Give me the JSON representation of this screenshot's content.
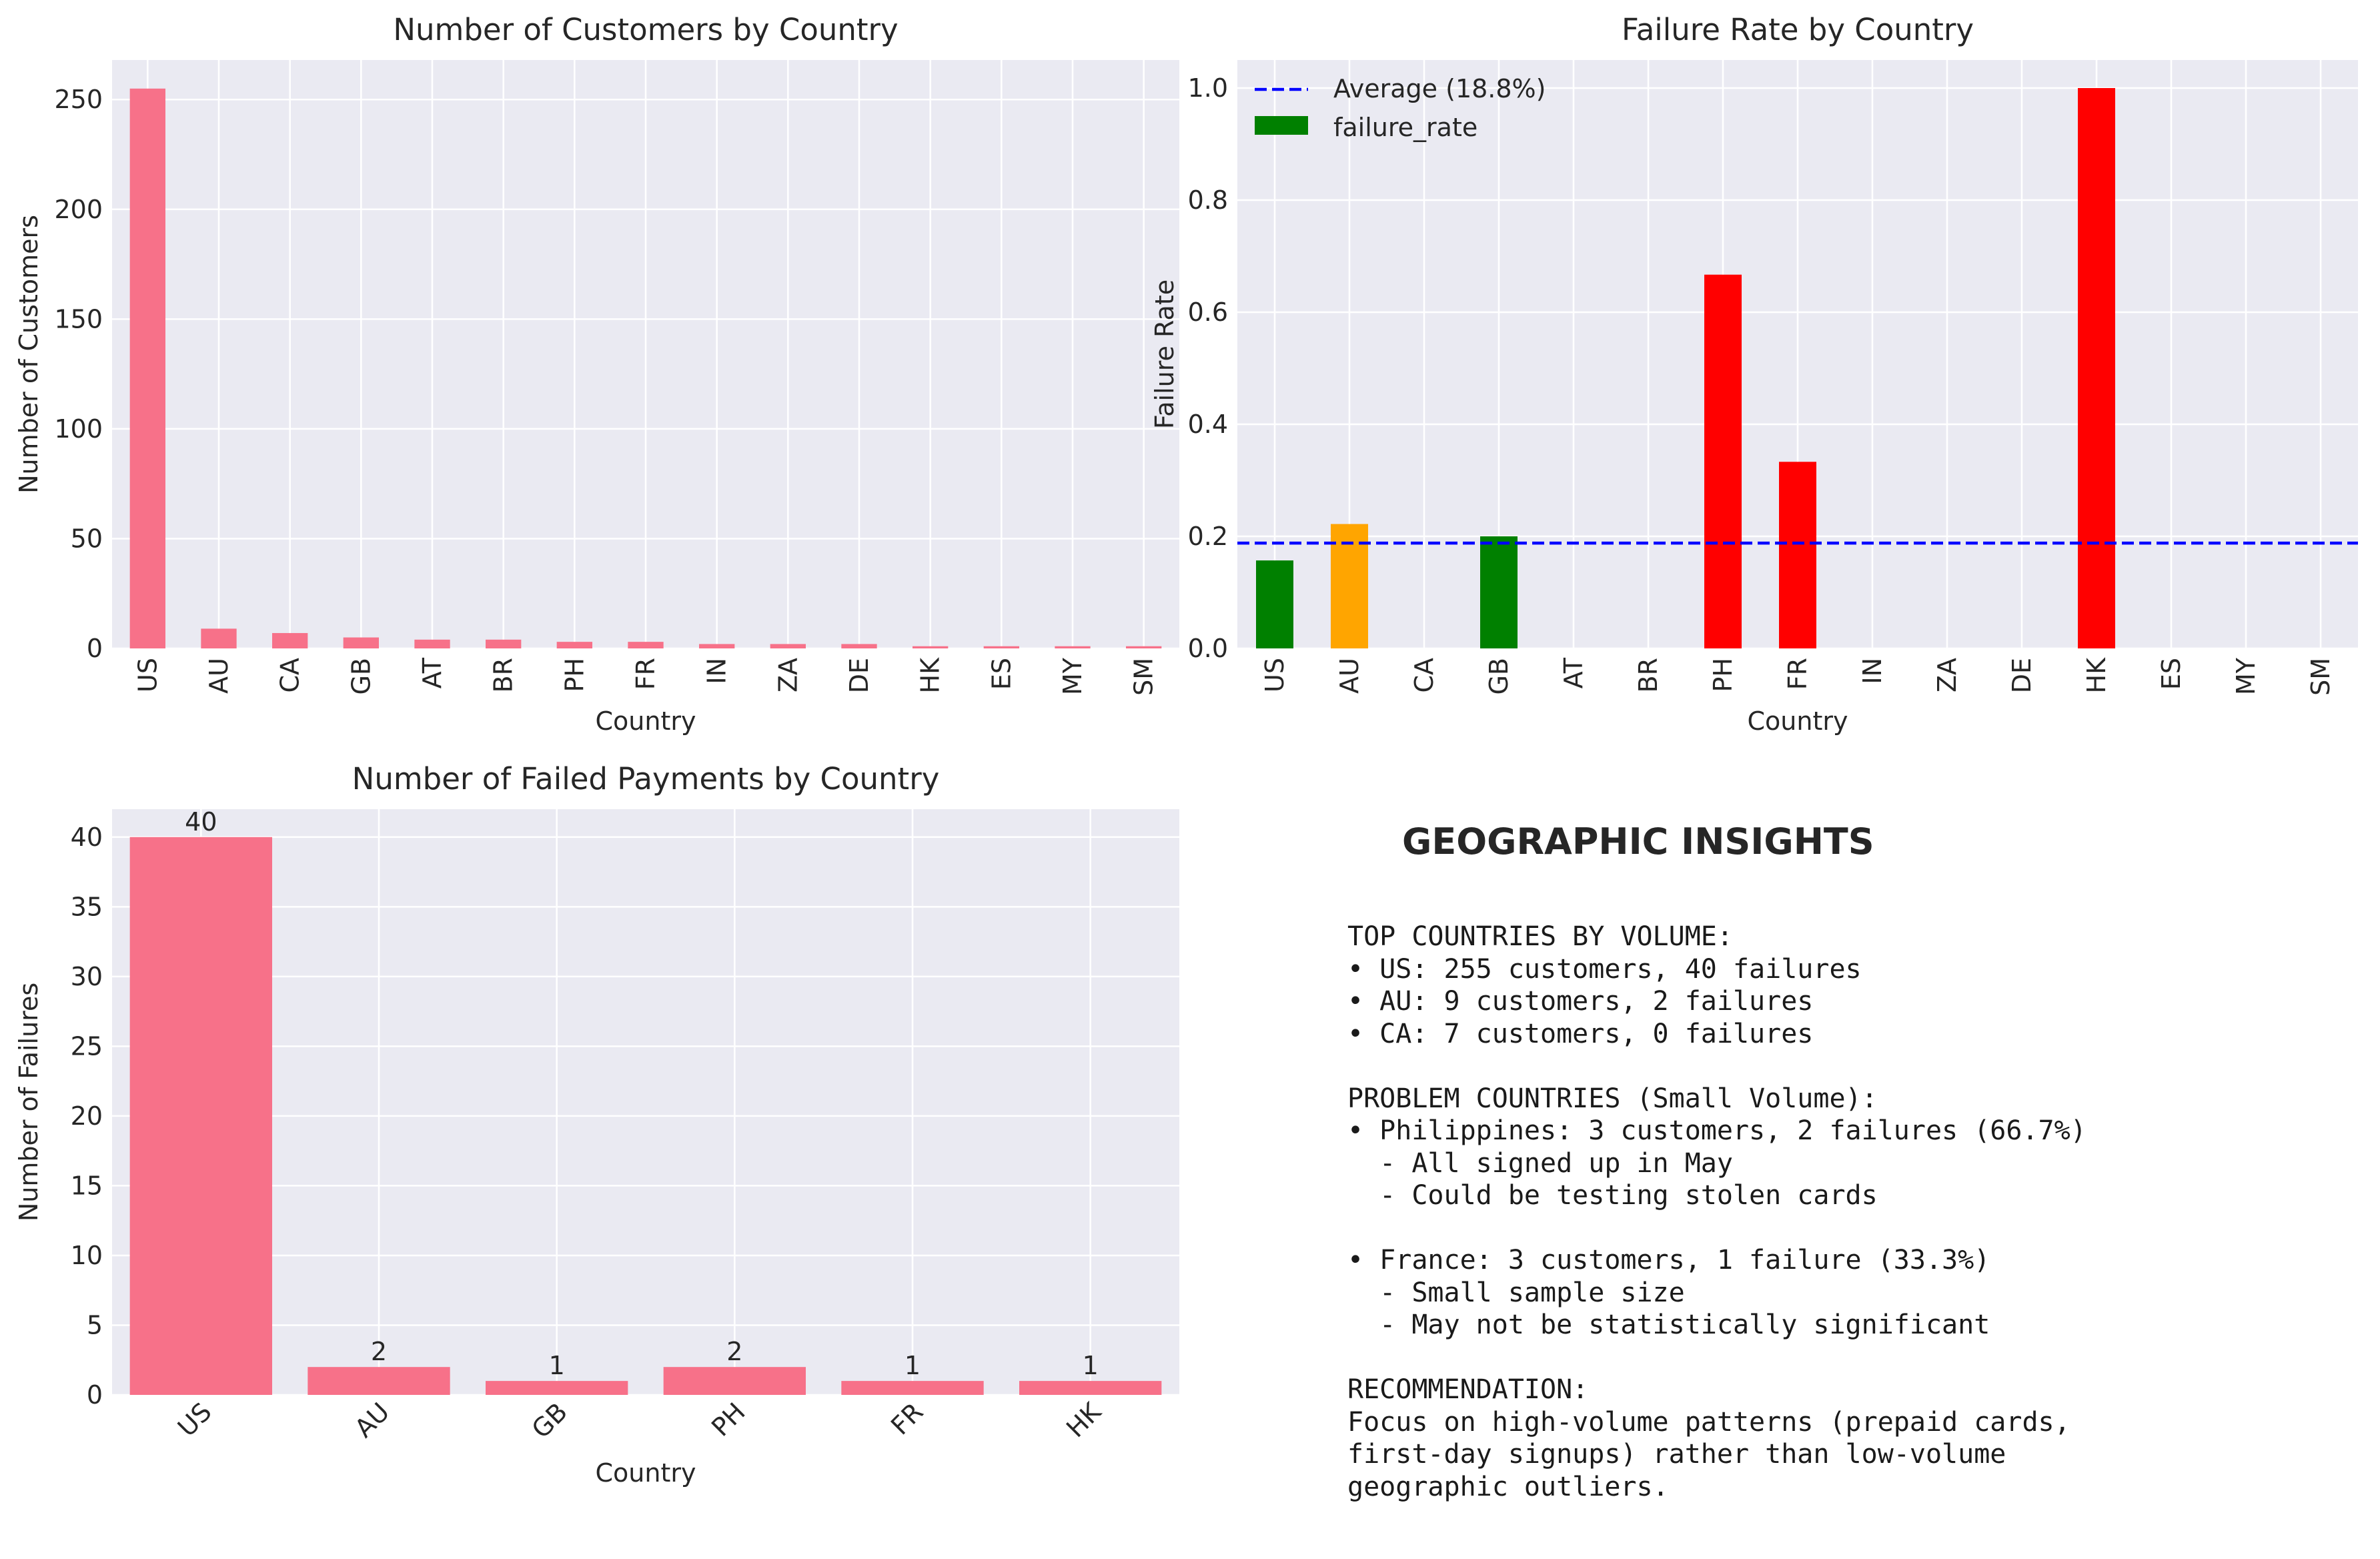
{
  "colors": {
    "axes_bg": "#EAEAF2",
    "grid": "#FFFFFF",
    "bar_pink": "#F77189",
    "green": "#008000",
    "orange": "#FFA500",
    "red": "#FF0000",
    "avg_line": "#0000FF"
  },
  "chart_data": [
    {
      "id": "customers",
      "type": "bar",
      "title": "Number of Customers by Country",
      "xlabel": "Country",
      "ylabel": "Number of Customers",
      "categories": [
        "US",
        "AU",
        "CA",
        "GB",
        "AT",
        "BR",
        "PH",
        "FR",
        "IN",
        "ZA",
        "DE",
        "HK",
        "ES",
        "MY",
        "SM"
      ],
      "values": [
        255,
        9,
        7,
        5,
        4,
        4,
        3,
        3,
        2,
        2,
        2,
        1,
        1,
        1,
        1
      ],
      "ylim": [
        0,
        268
      ],
      "yticks": [
        0,
        50,
        100,
        150,
        200,
        250
      ],
      "grid": true,
      "xtick_rotation": 90
    },
    {
      "id": "failure_rate",
      "type": "bar",
      "title": "Failure Rate by Country",
      "xlabel": "Country",
      "ylabel": "Failure Rate",
      "categories": [
        "US",
        "AU",
        "CA",
        "GB",
        "AT",
        "BR",
        "PH",
        "FR",
        "IN",
        "ZA",
        "DE",
        "HK",
        "ES",
        "MY",
        "SM"
      ],
      "values": [
        0.157,
        0.222,
        0,
        0.2,
        0,
        0,
        0.667,
        0.333,
        0,
        0,
        0,
        1.0,
        0,
        0,
        0
      ],
      "bar_colors": [
        "green",
        "orange",
        "green",
        "green",
        "green",
        "green",
        "red",
        "red",
        "green",
        "green",
        "green",
        "red",
        "green",
        "green",
        "green"
      ],
      "ylim": [
        0,
        1.05
      ],
      "yticks": [
        "0.0",
        "0.2",
        "0.4",
        "0.6",
        "0.8",
        "1.0"
      ],
      "average_line": {
        "value": 0.188,
        "label": "Average (18.8%)"
      },
      "legend": {
        "location": "upper-left",
        "entries": [
          "Average (18.8%)",
          "failure_rate"
        ]
      },
      "grid": true,
      "xtick_rotation": 90
    },
    {
      "id": "failed_payments",
      "type": "bar",
      "title": "Number of Failed Payments by Country",
      "xlabel": "Country",
      "ylabel": "Number of Failures",
      "categories": [
        "US",
        "AU",
        "GB",
        "PH",
        "FR",
        "HK"
      ],
      "values": [
        40,
        2,
        1,
        2,
        1,
        1
      ],
      "data_labels": [
        "40",
        "2",
        "1",
        "2",
        "1",
        "1"
      ],
      "ylim": [
        0,
        42
      ],
      "yticks": [
        0,
        5,
        10,
        15,
        20,
        25,
        30,
        35,
        40
      ],
      "grid": true,
      "xtick_rotation": 45
    }
  ],
  "insights": {
    "title": "GEOGRAPHIC INSIGHTS",
    "body": "TOP COUNTRIES BY VOLUME:\n• US: 255 customers, 40 failures\n• AU: 9 customers, 2 failures\n• CA: 7 customers, 0 failures\n\nPROBLEM COUNTRIES (Small Volume):\n• Philippines: 3 customers, 2 failures (66.7%)\n  - All signed up in May\n  - Could be testing stolen cards\n\n• France: 3 customers, 1 failure (33.3%)\n  - Small sample size\n  - May not be statistically significant\n\nRECOMMENDATION:\nFocus on high-volume patterns (prepaid cards,\nfirst-day signups) rather than low-volume\ngeographic outliers."
  }
}
